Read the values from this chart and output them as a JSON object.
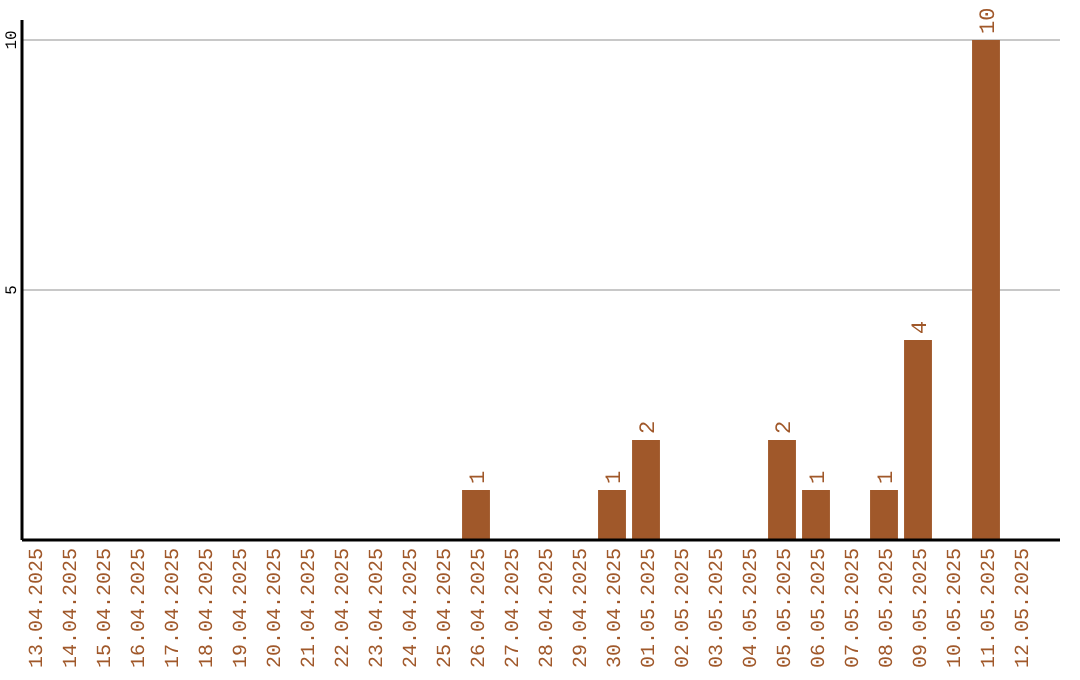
{
  "chart_data": {
    "type": "bar",
    "categories": [
      "13.04.2025",
      "14.04.2025",
      "15.04.2025",
      "16.04.2025",
      "17.04.2025",
      "18.04.2025",
      "19.04.2025",
      "20.04.2025",
      "21.04.2025",
      "22.04.2025",
      "23.04.2025",
      "24.04.2025",
      "25.04.2025",
      "26.04.2025",
      "27.04.2025",
      "28.04.2025",
      "29.04.2025",
      "30.04.2025",
      "01.05.2025",
      "02.05.2025",
      "03.05.2025",
      "04.05.2025",
      "05.05.2025",
      "06.05.2025",
      "07.05.2025",
      "08.05.2025",
      "09.05.2025",
      "10.05.2025",
      "11.05.2025",
      "12.05.2025"
    ],
    "values": [
      0,
      0,
      0,
      0,
      0,
      0,
      0,
      0,
      0,
      0,
      0,
      0,
      0,
      1,
      0,
      0,
      0,
      1,
      2,
      0,
      0,
      0,
      2,
      1,
      0,
      1,
      4,
      0,
      10,
      0
    ],
    "value_labels": [
      null,
      null,
      null,
      null,
      null,
      null,
      null,
      null,
      null,
      null,
      null,
      null,
      null,
      "1",
      null,
      null,
      null,
      "1",
      "2",
      null,
      null,
      null,
      "2",
      "1",
      null,
      "1",
      "4",
      null,
      "10",
      null
    ],
    "color": "#a0582a",
    "ylim": [
      0,
      10.4
    ],
    "yticks": [
      5,
      10
    ],
    "grid": "y"
  }
}
